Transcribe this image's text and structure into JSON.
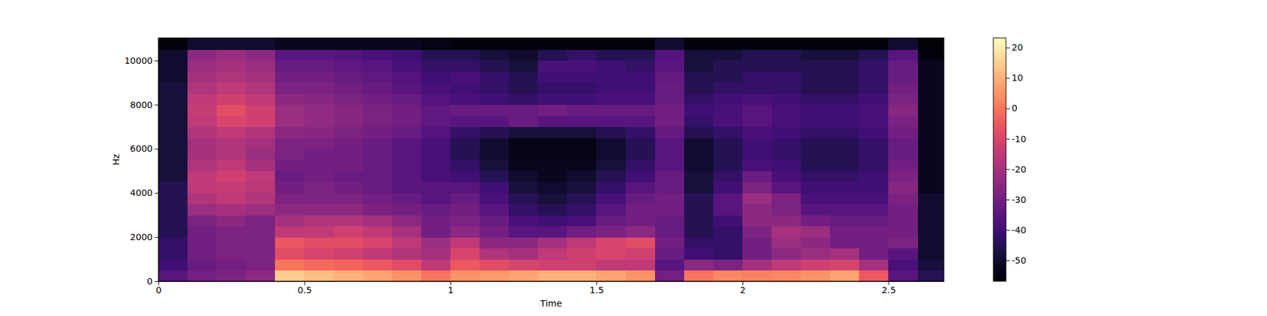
{
  "chart_data": {
    "type": "heatmap",
    "x_label": "Time",
    "y_label": "Hz",
    "x_edges": [
      0,
      0.1,
      0.2,
      0.3,
      0.4,
      0.5,
      0.6,
      0.7,
      0.8,
      0.9,
      1,
      1.1,
      1.2,
      1.3,
      1.4,
      1.5,
      1.6,
      1.7,
      1.8,
      1.9,
      2,
      2.1,
      2.2,
      2.3,
      2.4,
      2.5,
      2.6,
      2.7
    ],
    "y_edges": [
      0,
      500,
      1000,
      1500,
      2000,
      2500,
      3000,
      3500,
      4000,
      4500,
      5000,
      5500,
      6000,
      6500,
      7000,
      7500,
      8000,
      8500,
      9000,
      9500,
      10000,
      10500,
      11025
    ],
    "z": [
      [
        -35,
        -30,
        -28,
        -25,
        15,
        12,
        10,
        8,
        5,
        0,
        5,
        6,
        8,
        10,
        10,
        8,
        5,
        -30,
        0,
        3,
        2,
        3,
        5,
        8,
        -5,
        -35,
        -45
      ],
      [
        -40,
        -32,
        -30,
        -28,
        0,
        -2,
        -3,
        -5,
        -8,
        -15,
        -5,
        -8,
        -10,
        -12,
        -12,
        -15,
        -15,
        -35,
        -25,
        -28,
        -20,
        -15,
        -12,
        -10,
        -20,
        -38,
        -48
      ],
      [
        -42,
        -30,
        -28,
        -28,
        -8,
        -10,
        -12,
        -15,
        -18,
        -20,
        -10,
        -18,
        -20,
        -15,
        -12,
        -10,
        -12,
        -32,
        -40,
        -42,
        -30,
        -25,
        -22,
        -20,
        -30,
        -35,
        -50
      ],
      [
        -42,
        -30,
        -28,
        -28,
        -5,
        -8,
        -8,
        -10,
        -15,
        -22,
        -15,
        -25,
        -25,
        -20,
        -15,
        -10,
        -8,
        -30,
        -42,
        -42,
        -30,
        -22,
        -25,
        -30,
        -30,
        -28,
        -50
      ],
      [
        -45,
        -30,
        -28,
        -28,
        -15,
        -15,
        -12,
        -15,
        -20,
        -30,
        -25,
        -30,
        -35,
        -35,
        -30,
        -28,
        -25,
        -32,
        -45,
        -42,
        -28,
        -20,
        -22,
        -30,
        -30,
        -30,
        -50
      ],
      [
        -45,
        -28,
        -25,
        -28,
        -20,
        -18,
        -18,
        -20,
        -25,
        -30,
        -28,
        -32,
        -38,
        -40,
        -38,
        -32,
        -30,
        -32,
        -45,
        -40,
        -25,
        -25,
        -30,
        -32,
        -32,
        -30,
        -50
      ],
      [
        -45,
        -22,
        -20,
        -22,
        -25,
        -25,
        -25,
        -28,
        -30,
        -32,
        -30,
        -35,
        -42,
        -45,
        -42,
        -35,
        -30,
        -30,
        -45,
        -35,
        -25,
        -28,
        -35,
        -35,
        -35,
        -30,
        -50
      ],
      [
        -45,
        -18,
        -15,
        -18,
        -28,
        -28,
        -28,
        -30,
        -32,
        -35,
        -32,
        -38,
        -45,
        -48,
        -45,
        -38,
        -32,
        -30,
        -45,
        -35,
        -22,
        -28,
        -38,
        -38,
        -38,
        -28,
        -50
      ],
      [
        -45,
        -15,
        -14,
        -16,
        -30,
        -28,
        -30,
        -32,
        -35,
        -35,
        -35,
        -40,
        -48,
        -50,
        -48,
        -42,
        -35,
        -32,
        -48,
        -40,
        -28,
        -35,
        -40,
        -40,
        -40,
        -26,
        -52
      ],
      [
        -48,
        -15,
        -12,
        -15,
        -32,
        -30,
        -32,
        -32,
        -35,
        -38,
        -40,
        -45,
        -50,
        -52,
        -50,
        -45,
        -40,
        -32,
        -48,
        -42,
        -32,
        -38,
        -42,
        -42,
        -40,
        -28,
        -52
      ],
      [
        -48,
        -18,
        -15,
        -20,
        -30,
        -30,
        -30,
        -32,
        -35,
        -38,
        -42,
        -48,
        -52,
        -52,
        -52,
        -48,
        -42,
        -35,
        -50,
        -45,
        -38,
        -40,
        -45,
        -45,
        -42,
        -30,
        -52
      ],
      [
        -48,
        -20,
        -18,
        -22,
        -28,
        -30,
        -30,
        -32,
        -35,
        -38,
        -45,
        -50,
        -54,
        -54,
        -54,
        -50,
        -45,
        -35,
        -50,
        -45,
        -40,
        -42,
        -45,
        -45,
        -42,
        -32,
        -52
      ],
      [
        -48,
        -20,
        -18,
        -20,
        -28,
        -28,
        -30,
        -32,
        -35,
        -38,
        -45,
        -50,
        -54,
        -54,
        -54,
        -50,
        -45,
        -35,
        -50,
        -45,
        -40,
        -42,
        -45,
        -45,
        -42,
        -32,
        -52
      ],
      [
        -48,
        -18,
        -15,
        -18,
        -25,
        -26,
        -28,
        -30,
        -32,
        -36,
        -42,
        -45,
        -48,
        -48,
        -48,
        -45,
        -42,
        -33,
        -45,
        -42,
        -38,
        -40,
        -42,
        -42,
        -40,
        -30,
        -52
      ],
      [
        -48,
        -15,
        -10,
        -12,
        -22,
        -24,
        -26,
        -28,
        -30,
        -34,
        -35,
        -35,
        -32,
        -35,
        -35,
        -35,
        -35,
        -30,
        -42,
        -38,
        -35,
        -38,
        -40,
        -40,
        -38,
        -28,
        -52
      ],
      [
        -48,
        -14,
        -8,
        -12,
        -22,
        -24,
        -26,
        -28,
        -30,
        -34,
        -32,
        -32,
        -32,
        -30,
        -32,
        -32,
        -32,
        -30,
        -40,
        -38,
        -35,
        -38,
        -40,
        -40,
        -38,
        -26,
        -52
      ],
      [
        -48,
        -15,
        -12,
        -15,
        -25,
        -26,
        -28,
        -30,
        -32,
        -36,
        -38,
        -40,
        -42,
        -40,
        -40,
        -38,
        -38,
        -32,
        -42,
        -40,
        -38,
        -40,
        -42,
        -42,
        -40,
        -28,
        -52
      ],
      [
        -48,
        -18,
        -15,
        -18,
        -28,
        -28,
        -30,
        -32,
        -35,
        -38,
        -40,
        -42,
        -45,
        -42,
        -42,
        -40,
        -40,
        -32,
        -45,
        -42,
        -42,
        -42,
        -45,
        -45,
        -42,
        -30,
        -52
      ],
      [
        -50,
        -20,
        -18,
        -20,
        -30,
        -30,
        -32,
        -34,
        -36,
        -40,
        -38,
        -42,
        -45,
        -40,
        -40,
        -40,
        -40,
        -33,
        -45,
        -45,
        -42,
        -42,
        -45,
        -45,
        -42,
        -32,
        -52
      ],
      [
        -50,
        -22,
        -20,
        -22,
        -32,
        -32,
        -34,
        -35,
        -38,
        -42,
        -42,
        -45,
        -48,
        -38,
        -38,
        -40,
        -42,
        -35,
        -48,
        -45,
        -45,
        -45,
        -45,
        -45,
        -42,
        -32,
        -52
      ],
      [
        -50,
        -25,
        -22,
        -25,
        -35,
        -35,
        -36,
        -38,
        -40,
        -45,
        -45,
        -48,
        -50,
        -45,
        -42,
        -45,
        -45,
        -36,
        -48,
        -48,
        -45,
        -45,
        -48,
        -48,
        -45,
        -35,
        -55
      ],
      [
        -55,
        -50,
        -50,
        -50,
        -52,
        -52,
        -52,
        -52,
        -52,
        -54,
        -55,
        -55,
        -55,
        -55,
        -55,
        -55,
        -55,
        -50,
        -55,
        -55,
        -55,
        -55,
        -55,
        -55,
        -55,
        -50,
        -56
      ]
    ],
    "xlim": [
      0,
      2.69
    ],
    "ylim": [
      0,
      11025
    ],
    "xticks": [
      0,
      0.5,
      1,
      1.5,
      2,
      2.5
    ],
    "yticks": [
      0,
      2000,
      4000,
      6000,
      8000,
      10000
    ],
    "colorbar": {
      "lim": [
        -56.9,
        23.2
      ],
      "ticks": [
        -50,
        -40,
        -30,
        -20,
        -10,
        0,
        10,
        20
      ]
    }
  }
}
